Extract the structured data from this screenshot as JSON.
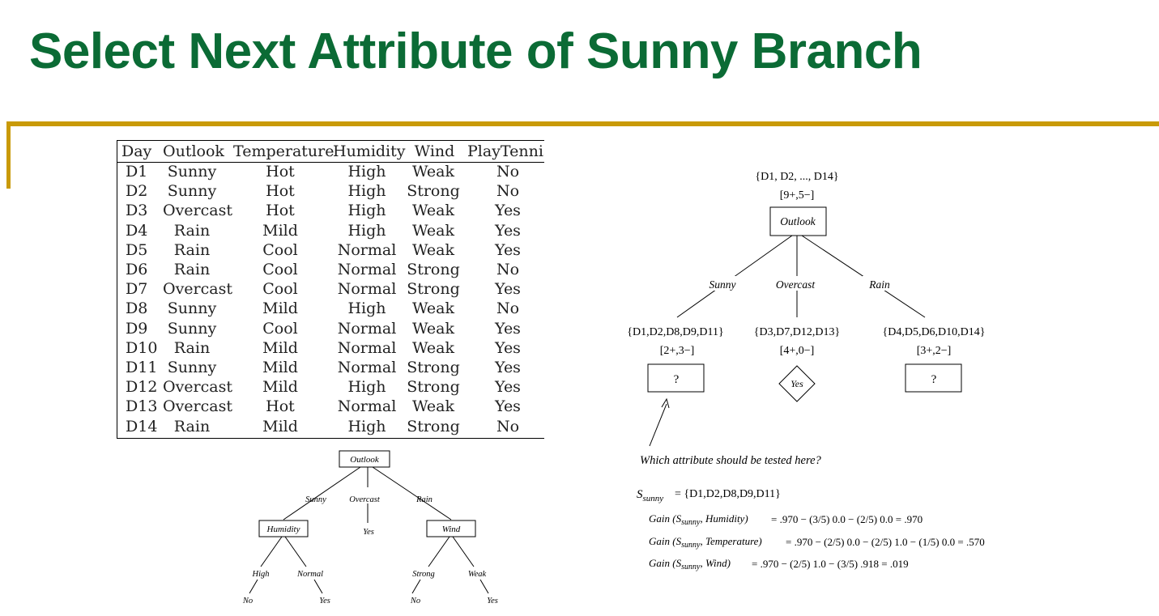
{
  "slide": {
    "title": "Select Next Attribute of Sunny Branch"
  },
  "table": {
    "headers": [
      "Day",
      "Outlook",
      "Temperature",
      "Humidity",
      "Wind",
      "PlayTennis"
    ],
    "rows": [
      [
        "D1",
        "Sunny",
        "Hot",
        "High",
        "Weak",
        "No"
      ],
      [
        "D2",
        "Sunny",
        "Hot",
        "High",
        "Strong",
        "No"
      ],
      [
        "D3",
        "Overcast",
        "Hot",
        "High",
        "Weak",
        "Yes"
      ],
      [
        "D4",
        "Rain",
        "Mild",
        "High",
        "Weak",
        "Yes"
      ],
      [
        "D5",
        "Rain",
        "Cool",
        "Normal",
        "Weak",
        "Yes"
      ],
      [
        "D6",
        "Rain",
        "Cool",
        "Normal",
        "Strong",
        "No"
      ],
      [
        "D7",
        "Overcast",
        "Cool",
        "Normal",
        "Strong",
        "Yes"
      ],
      [
        "D8",
        "Sunny",
        "Mild",
        "High",
        "Weak",
        "No"
      ],
      [
        "D9",
        "Sunny",
        "Cool",
        "Normal",
        "Weak",
        "Yes"
      ],
      [
        "D10",
        "Rain",
        "Mild",
        "Normal",
        "Weak",
        "Yes"
      ],
      [
        "D11",
        "Sunny",
        "Mild",
        "Normal",
        "Strong",
        "Yes"
      ],
      [
        "D12",
        "Overcast",
        "Mild",
        "High",
        "Strong",
        "Yes"
      ],
      [
        "D13",
        "Overcast",
        "Hot",
        "Normal",
        "Weak",
        "Yes"
      ],
      [
        "D14",
        "Rain",
        "Mild",
        "High",
        "Strong",
        "No"
      ]
    ]
  },
  "small_tree": {
    "root": "Outlook",
    "branch_sunny": "Sunny",
    "branch_overcast": "Overcast",
    "branch_rain": "Rain",
    "humidity_node": "Humidity",
    "overcast_leaf": "Yes",
    "wind_node": "Wind",
    "high": "High",
    "normal": "Normal",
    "strong": "Strong",
    "weak": "Weak",
    "leaf_high": "No",
    "leaf_normal": "Yes",
    "leaf_strong": "No",
    "leaf_weak": "Yes"
  },
  "right_tree": {
    "root_set": "{D1, D2, ..., D14}",
    "root_counts": "[9+,5−]",
    "root_label": "Outlook",
    "branch_sunny": "Sunny",
    "branch_overcast": "Overcast",
    "branch_rain": "Rain",
    "sunny_set": "{D1,D2,D8,D9,D11}",
    "sunny_counts": "[2+,3−]",
    "overcast_set": "{D3,D7,D12,D13}",
    "overcast_counts": "[4+,0−]",
    "rain_set": "{D4,D5,D6,D10,D14}",
    "rain_counts": "[3+,2−]",
    "unknown_node": "?",
    "yes_leaf": "Yes",
    "question": "Which attribute should be tested here?"
  },
  "gains": {
    "s_sunny_label": "S",
    "s_sunny_sub": "sunny",
    "s_sunny_value": "= {D1,D2,D8,D9,D11}",
    "gain_prefix": "Gain (S",
    "subscript": "sunny",
    "humidity_attr": ", Humidity)",
    "humidity_calc": "=  .970  −  (3/5) 0.0  −  (2/5) 0.0  =  .970",
    "temperature_attr": ", Temperature)",
    "temperature_calc": "=  .970  −  (2/5) 0.0  −  (2/5) 1.0  −  (1/5) 0.0  =  .570",
    "wind_attr": ", Wind)",
    "wind_calc": "=  .970  −  (2/5) 1.0  −  (3/5) .918  =  .019"
  },
  "colors": {
    "title": "#0b6b35",
    "rule": "#c99a07"
  }
}
